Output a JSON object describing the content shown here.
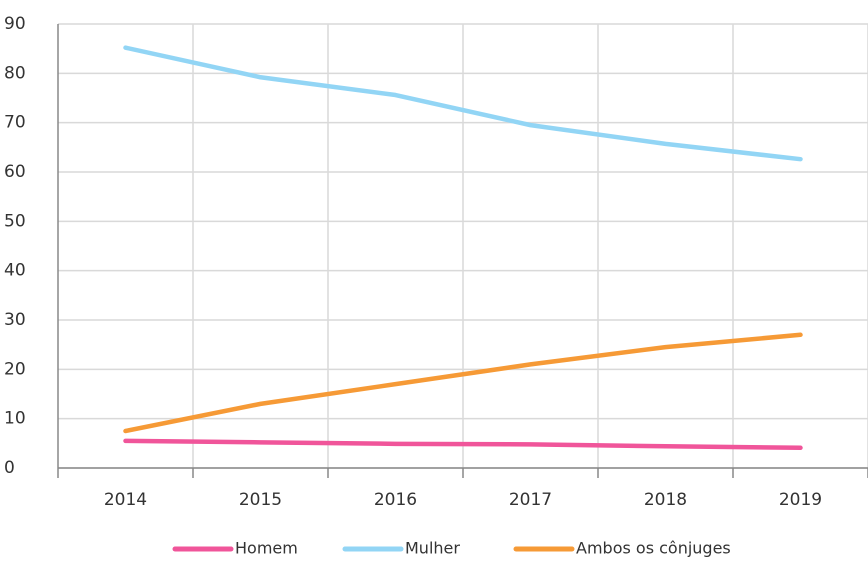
{
  "chart_data": {
    "type": "line",
    "categories": [
      "2014",
      "2015",
      "2016",
      "2017",
      "2018",
      "2019"
    ],
    "series": [
      {
        "name": "Homem",
        "color": "#f0559a",
        "values": [
          5.5,
          5.2,
          4.9,
          4.8,
          4.4,
          4.1
        ]
      },
      {
        "name": "Mulher",
        "color": "#92d5f5",
        "values": [
          85.2,
          79.2,
          75.6,
          69.5,
          65.7,
          62.6
        ]
      },
      {
        "name": "Ambos os cônjuges",
        "color": "#f69a36",
        "values": [
          7.5,
          13,
          17,
          21,
          24.5,
          27
        ]
      }
    ],
    "ylim": [
      0,
      90
    ],
    "yticks": [
      0,
      10,
      20,
      30,
      40,
      50,
      60,
      70,
      80,
      90
    ],
    "grid": true,
    "legend": "bottom"
  }
}
